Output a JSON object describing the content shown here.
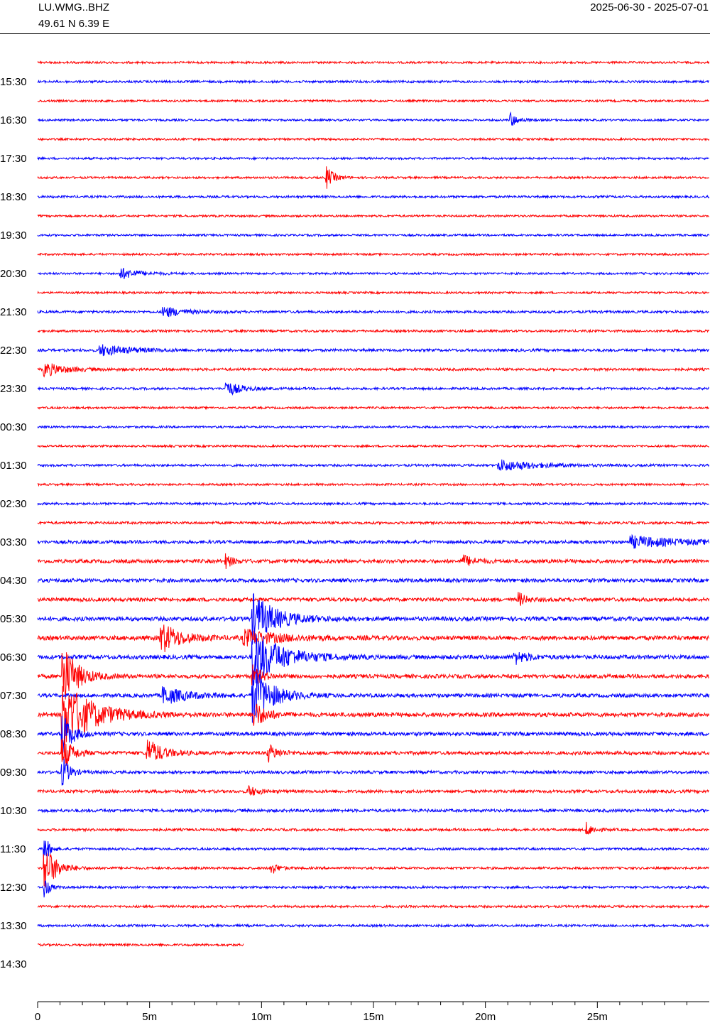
{
  "header": {
    "station": "LU.WMG..BHZ",
    "coordinates": "49.61 N 6.39 E",
    "date_range": "2025-06-30 - 2025-07-01"
  },
  "chart_data": {
    "type": "line",
    "title": "",
    "xlabel": "",
    "ylabel": "",
    "x_range_minutes": [
      0,
      30
    ],
    "x_ticks": [
      {
        "value": 0,
        "label": "0"
      },
      {
        "value": 5,
        "label": "5m"
      },
      {
        "value": 10,
        "label": "10m"
      },
      {
        "value": 15,
        "label": "15m"
      },
      {
        "value": 20,
        "label": "20m"
      },
      {
        "value": 25,
        "label": "25m"
      }
    ],
    "trace_colors": [
      "#ff0000",
      "#0000ff"
    ],
    "time_labels": [
      "15:30",
      "16:30",
      "17:30",
      "18:30",
      "19:30",
      "20:30",
      "21:30",
      "22:30",
      "23:30",
      "00:30",
      "01:30",
      "02:30",
      "03:30",
      "04:30",
      "05:30",
      "06:30",
      "07:30",
      "08:30",
      "09:30",
      "10:30",
      "11:30",
      "12:30",
      "13:30",
      "14:30"
    ],
    "traces": [
      {
        "noise": 0.9,
        "events": []
      },
      {
        "noise": 1.0,
        "events": []
      },
      {
        "noise": 0.9,
        "events": []
      },
      {
        "noise": 0.9,
        "events": [
          {
            "t": 21.1,
            "amp": 7,
            "dur": 0.3
          }
        ]
      },
      {
        "noise": 0.9,
        "events": []
      },
      {
        "noise": 0.9,
        "events": []
      },
      {
        "noise": 0.9,
        "events": [
          {
            "t": 12.9,
            "amp": 10,
            "dur": 0.3
          }
        ]
      },
      {
        "noise": 1.0,
        "events": []
      },
      {
        "noise": 0.9,
        "events": []
      },
      {
        "noise": 0.9,
        "events": []
      },
      {
        "noise": 0.9,
        "events": []
      },
      {
        "noise": 0.9,
        "events": [
          {
            "t": 3.7,
            "amp": 5,
            "dur": 0.8
          }
        ]
      },
      {
        "noise": 0.9,
        "events": []
      },
      {
        "noise": 1.1,
        "events": [
          {
            "t": 5.6,
            "amp": 5,
            "dur": 0.8
          }
        ]
      },
      {
        "noise": 1.0,
        "events": []
      },
      {
        "noise": 1.2,
        "events": [
          {
            "t": 2.8,
            "amp": 5,
            "dur": 1.2
          }
        ]
      },
      {
        "noise": 1.1,
        "events": [
          {
            "t": 0.3,
            "amp": 6,
            "dur": 0.9
          }
        ]
      },
      {
        "noise": 1.0,
        "events": [
          {
            "t": 8.4,
            "amp": 7,
            "dur": 0.6
          }
        ]
      },
      {
        "noise": 0.9,
        "events": []
      },
      {
        "noise": 0.9,
        "events": []
      },
      {
        "noise": 0.9,
        "events": []
      },
      {
        "noise": 1.0,
        "events": [
          {
            "t": 20.6,
            "amp": 5,
            "dur": 1.6
          }
        ]
      },
      {
        "noise": 0.9,
        "events": []
      },
      {
        "noise": 1.0,
        "events": []
      },
      {
        "noise": 1.1,
        "events": []
      },
      {
        "noise": 1.4,
        "events": [
          {
            "t": 26.5,
            "amp": 5,
            "dur": 2.0
          }
        ]
      },
      {
        "noise": 1.6,
        "events": [
          {
            "t": 8.4,
            "amp": 6,
            "dur": 0.3
          },
          {
            "t": 19.0,
            "amp": 5,
            "dur": 0.5
          }
        ]
      },
      {
        "noise": 1.6,
        "events": []
      },
      {
        "noise": 1.6,
        "events": [
          {
            "t": 21.5,
            "amp": 6,
            "dur": 0.3
          }
        ]
      },
      {
        "noise": 1.8,
        "events": [
          {
            "t": 9.6,
            "amp": 22,
            "dur": 1.0
          }
        ]
      },
      {
        "noise": 1.9,
        "events": [
          {
            "t": 5.5,
            "amp": 14,
            "dur": 0.8
          },
          {
            "t": 9.2,
            "amp": 7,
            "dur": 1.5
          }
        ]
      },
      {
        "noise": 1.8,
        "events": [
          {
            "t": 9.6,
            "amp": 26,
            "dur": 1.2
          },
          {
            "t": 21.3,
            "amp": 6,
            "dur": 0.5
          }
        ]
      },
      {
        "noise": 1.7,
        "events": [
          {
            "t": 1.1,
            "amp": 30,
            "dur": 0.6
          },
          {
            "t": 9.6,
            "amp": 9,
            "dur": 0.4
          }
        ]
      },
      {
        "noise": 1.6,
        "events": [
          {
            "t": 9.6,
            "amp": 26,
            "dur": 0.8
          },
          {
            "t": 5.6,
            "amp": 8,
            "dur": 1.0
          }
        ]
      },
      {
        "noise": 1.8,
        "events": [
          {
            "t": 1.1,
            "amp": 30,
            "dur": 1.3
          },
          {
            "t": 9.6,
            "amp": 14,
            "dur": 0.5
          }
        ]
      },
      {
        "noise": 1.6,
        "events": [
          {
            "t": 1.1,
            "amp": 20,
            "dur": 0.4
          }
        ]
      },
      {
        "noise": 1.5,
        "events": [
          {
            "t": 4.9,
            "amp": 13,
            "dur": 0.6
          },
          {
            "t": 1.1,
            "amp": 16,
            "dur": 0.4
          },
          {
            "t": 10.3,
            "amp": 8,
            "dur": 0.4
          }
        ]
      },
      {
        "noise": 1.3,
        "events": [
          {
            "t": 1.1,
            "amp": 14,
            "dur": 0.3
          }
        ]
      },
      {
        "noise": 1.3,
        "events": [
          {
            "t": 9.4,
            "amp": 5,
            "dur": 0.4
          }
        ]
      },
      {
        "noise": 1.3,
        "events": []
      },
      {
        "noise": 1.1,
        "events": [
          {
            "t": 24.5,
            "amp": 6,
            "dur": 0.3
          }
        ]
      },
      {
        "noise": 1.0,
        "events": [
          {
            "t": 0.3,
            "amp": 14,
            "dur": 0.2
          }
        ]
      },
      {
        "noise": 1.0,
        "events": [
          {
            "t": 0.3,
            "amp": 22,
            "dur": 0.5
          },
          {
            "t": 10.4,
            "amp": 6,
            "dur": 0.3
          }
        ]
      },
      {
        "noise": 1.0,
        "events": [
          {
            "t": 0.3,
            "amp": 10,
            "dur": 0.2
          }
        ]
      },
      {
        "noise": 1.0,
        "events": []
      },
      {
        "noise": 1.0,
        "events": []
      },
      {
        "noise": 1.0,
        "events": [],
        "end_minute": 9.2
      }
    ]
  }
}
